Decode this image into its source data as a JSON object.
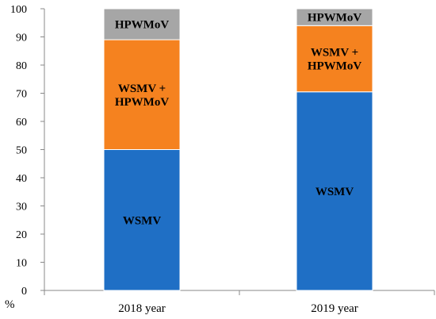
{
  "chart_data": {
    "type": "bar",
    "stacked": true,
    "categories": [
      "2018 year",
      "2019 year"
    ],
    "series": [
      {
        "name": "WSMV",
        "values": [
          50,
          70.5
        ],
        "color": "#1f6fc5",
        "label_lines": [
          "WSMV"
        ]
      },
      {
        "name": "WSMV + HPWMoV",
        "values": [
          39,
          23.5
        ],
        "color": "#f5821f",
        "label_lines": [
          "WSMV +",
          "HPWMoV"
        ]
      },
      {
        "name": "HPWMoV",
        "values": [
          11,
          6
        ],
        "color": "#a6a6a6",
        "label_lines": [
          "HPWMoV"
        ]
      }
    ],
    "ylim": [
      0,
      100
    ],
    "yticks": [
      0,
      10,
      20,
      30,
      40,
      50,
      60,
      70,
      80,
      90,
      100
    ],
    "ylabel": "%",
    "xlabel": "",
    "title": "",
    "grid": false,
    "legend": "none"
  }
}
